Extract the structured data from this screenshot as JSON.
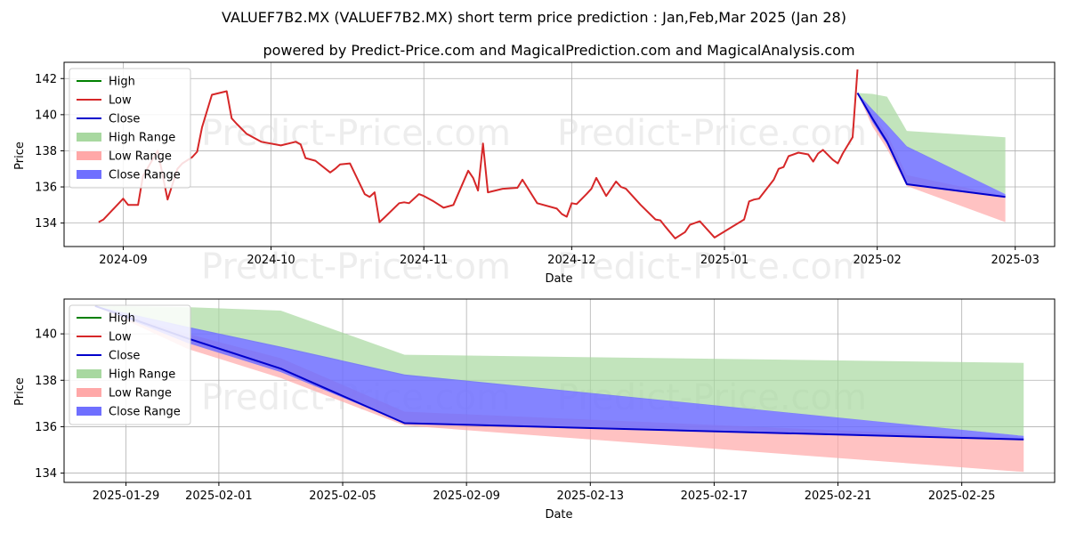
{
  "title": "VALUEF7B2.MX (VALUEF7B2.MX) short term price prediction : Jan,Feb,Mar 2025 (Jan 28)",
  "subtitle": "powered by Predict-Price.com and MagicalPrediction.com and MagicalAnalysis.com",
  "watermark": "Predict-Price.com",
  "colors": {
    "high": "#008000",
    "low": "#d62728",
    "close": "#0000cc",
    "high_range": "#a8d8a0",
    "low_range": "#ffa8a8",
    "close_range": "#6f6fff",
    "grid": "#b0b0b0"
  },
  "chart_data": [
    {
      "type": "line",
      "xlabel": "Date",
      "ylabel": "Price",
      "xlim": [
        "2024-08-20",
        "2025-03-09"
      ],
      "ylim": [
        132.7,
        142.9
      ],
      "x_ticks": [
        "2024-09-01",
        "2024-10-01",
        "2024-11-01",
        "2024-12-01",
        "2025-01-01",
        "2025-02-01",
        "2025-03-01"
      ],
      "x_tick_labels": [
        "2024-09",
        "2024-10",
        "2024-11",
        "2024-12",
        "2025-01",
        "2025-02",
        "2025-03"
      ],
      "y_ticks": [
        134,
        136,
        138,
        140,
        142
      ],
      "legend": [
        "High",
        "Low",
        "High Range",
        "Low Range",
        "Close Range",
        "Close"
      ],
      "legend_order": [
        "High",
        "Low",
        "Close",
        "High Range",
        "Low Range",
        "Close Range"
      ],
      "legend_position": "top-left",
      "grid": true,
      "history": {
        "name": "Low",
        "x": [
          "2024-08-27",
          "2024-08-28",
          "2024-09-01",
          "2024-09-02",
          "2024-09-04",
          "2024-09-05",
          "2024-09-08",
          "2024-09-10",
          "2024-09-12",
          "2024-09-13",
          "2024-09-15",
          "2024-09-16",
          "2024-09-17",
          "2024-09-19",
          "2024-09-22",
          "2024-09-23",
          "2024-09-24",
          "2024-09-26",
          "2024-09-29",
          "2024-09-30",
          "2024-10-03",
          "2024-10-06",
          "2024-10-07",
          "2024-10-08",
          "2024-10-10",
          "2024-10-13",
          "2024-10-14",
          "2024-10-15",
          "2024-10-17",
          "2024-10-20",
          "2024-10-21",
          "2024-10-22",
          "2024-10-23",
          "2024-10-24",
          "2024-10-27",
          "2024-10-28",
          "2024-10-29",
          "2024-10-31",
          "2024-11-01",
          "2024-11-03",
          "2024-11-05",
          "2024-11-07",
          "2024-11-10",
          "2024-11-11",
          "2024-11-12",
          "2024-11-13",
          "2024-11-14",
          "2024-11-17",
          "2024-11-20",
          "2024-11-21",
          "2024-11-24",
          "2024-11-28",
          "2024-11-29",
          "2024-11-30",
          "2024-12-01",
          "2024-12-02",
          "2024-12-04",
          "2024-12-05",
          "2024-12-06",
          "2024-12-08",
          "2024-12-10",
          "2024-12-11",
          "2024-12-12",
          "2024-12-15",
          "2024-12-18",
          "2024-12-19",
          "2024-12-20",
          "2024-12-22",
          "2024-12-24",
          "2024-12-25",
          "2024-12-27",
          "2024-12-30",
          "2025-01-05",
          "2025-01-06",
          "2025-01-07",
          "2025-01-08",
          "2025-01-11",
          "2025-01-12",
          "2025-01-13",
          "2025-01-14",
          "2025-01-16",
          "2025-01-18",
          "2025-01-19",
          "2025-01-20",
          "2025-01-21",
          "2025-01-23",
          "2025-01-24",
          "2025-01-25",
          "2025-01-26",
          "2025-01-27",
          "2025-01-28"
        ],
        "y": [
          134.05,
          134.2,
          135.35,
          135.0,
          135.0,
          136.6,
          138.0,
          135.3,
          137.0,
          137.3,
          137.65,
          137.95,
          139.3,
          141.1,
          141.3,
          139.8,
          139.5,
          138.95,
          138.5,
          138.45,
          138.3,
          138.5,
          138.35,
          137.6,
          137.45,
          136.8,
          137.0,
          137.25,
          137.3,
          135.6,
          135.45,
          135.7,
          134.05,
          134.3,
          135.1,
          135.15,
          135.1,
          135.6,
          135.5,
          135.2,
          134.85,
          135.0,
          136.9,
          136.5,
          135.8,
          138.4,
          135.7,
          135.9,
          135.95,
          136.4,
          135.1,
          134.8,
          134.5,
          134.35,
          135.1,
          135.05,
          135.6,
          135.9,
          136.5,
          135.5,
          136.3,
          136.0,
          135.9,
          135.0,
          134.2,
          134.15,
          133.8,
          133.15,
          133.5,
          133.9,
          134.1,
          133.2,
          134.2,
          135.2,
          135.3,
          135.35,
          136.4,
          137.0,
          137.1,
          137.7,
          137.9,
          137.8,
          137.4,
          137.85,
          138.05,
          137.5,
          137.3,
          137.85,
          138.3,
          138.75,
          142.5
        ]
      }
    },
    {
      "type": "area",
      "xlabel": "Date",
      "ylabel": "Price",
      "xlim": [
        "2025-01-27",
        "2025-02-28"
      ],
      "ylim": [
        133.6,
        141.5
      ],
      "x_ticks": [
        "2025-01-29",
        "2025-02-01",
        "2025-02-05",
        "2025-02-09",
        "2025-02-13",
        "2025-02-17",
        "2025-02-21",
        "2025-02-25"
      ],
      "y_ticks": [
        134,
        136,
        138,
        140
      ],
      "legend": [
        "High",
        "Low",
        "Close",
        "High Range",
        "Low Range",
        "Close Range"
      ],
      "legend_position": "top-left",
      "grid": true
    }
  ],
  "forecast": {
    "x": [
      "2025-01-28",
      "2025-01-31",
      "2025-02-03",
      "2025-02-07",
      "2025-02-27"
    ],
    "close": [
      141.2,
      139.8,
      138.5,
      136.15,
      135.45
    ],
    "high_upper": [
      141.2,
      141.15,
      141.0,
      139.1,
      138.75
    ],
    "high_lower": [
      141.2,
      140.25,
      139.4,
      138.2,
      135.6
    ],
    "low_upper": [
      141.2,
      140.0,
      138.95,
      136.65,
      135.5
    ],
    "low_lower": [
      141.2,
      139.35,
      138.1,
      136.05,
      134.05
    ],
    "close_upper": [
      141.2,
      140.3,
      139.45,
      138.25,
      135.6
    ],
    "close_lower": [
      141.2,
      139.6,
      138.35,
      136.15,
      135.45
    ]
  }
}
